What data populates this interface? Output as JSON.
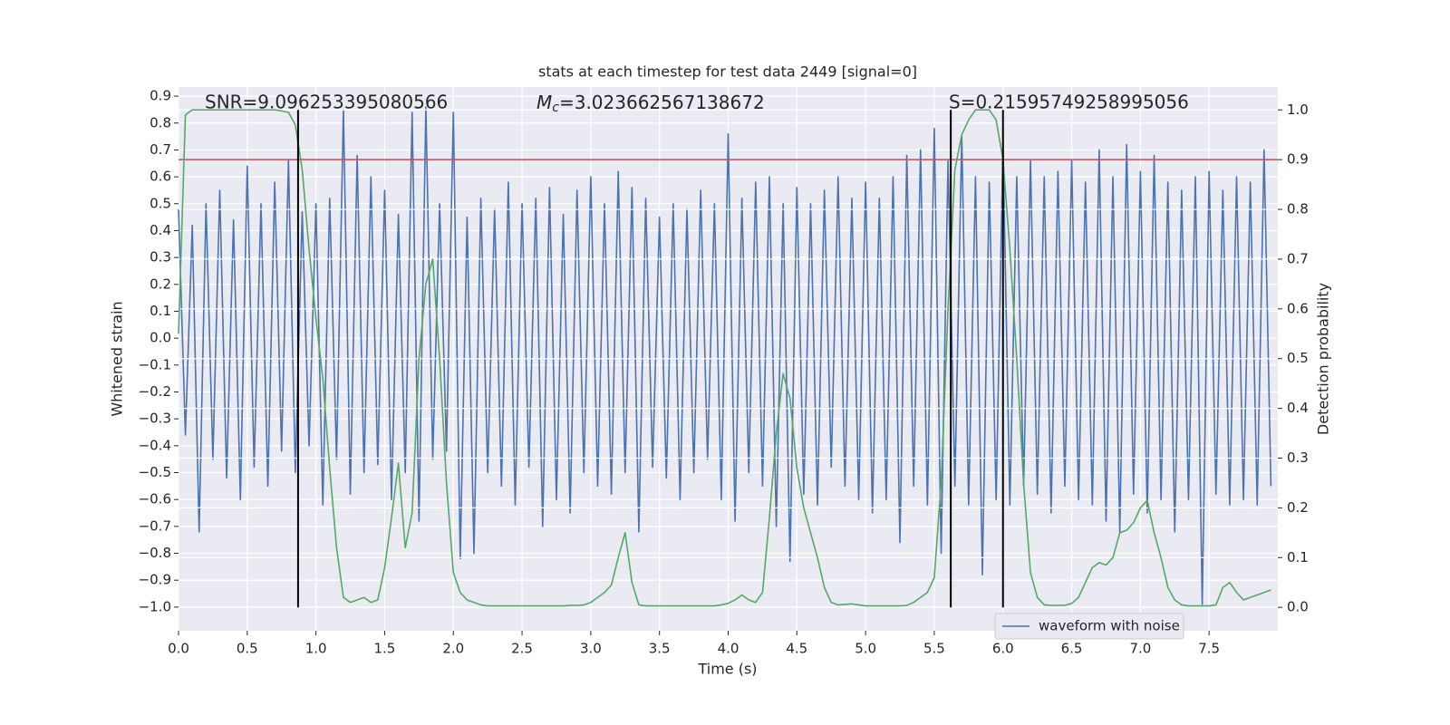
{
  "chart_data": {
    "type": "line",
    "title": "stats at each timestep for test data 2449 [signal=0]",
    "xlabel": "Time (s)",
    "ylabel": "Whitened strain",
    "y2label": "Detection probability",
    "annotations": [
      "SNR=9.096253395080566",
      "S=0.21595749258995056"
    ],
    "mc_label": {
      "symbol": "M",
      "subscript": "c",
      "value": "=3.023662567138672"
    },
    "xlim": [
      0,
      8.0
    ],
    "ylim": [
      -1.088,
      0.934
    ],
    "y2lim": [
      -0.047,
      1.046
    ],
    "xticks": [
      {
        "value": 0,
        "label": "0.0"
      },
      0.5,
      {
        "value": 1,
        "label": "1.0"
      },
      1.5,
      {
        "value": 2,
        "label": "2.0"
      },
      2.5,
      {
        "value": 3,
        "label": "3.0"
      },
      3.5,
      {
        "value": 4,
        "label": "4.0"
      },
      4.5,
      {
        "value": 5,
        "label": "5.0"
      },
      5.5,
      {
        "value": 6,
        "label": "6.0"
      },
      6.5,
      {
        "value": 7,
        "label": "7.0"
      },
      7.5
    ],
    "yticks": [
      {
        "value": -1.0,
        "label": "−1.0"
      },
      {
        "value": -0.9,
        "label": "−0.9"
      },
      {
        "value": -0.8,
        "label": "−0.8"
      },
      {
        "value": -0.7,
        "label": "−0.7"
      },
      {
        "value": -0.6,
        "label": "−0.6"
      },
      {
        "value": -0.5,
        "label": "−0.5"
      },
      {
        "value": -0.4,
        "label": "−0.4"
      },
      {
        "value": -0.3,
        "label": "−0.3"
      },
      {
        "value": -0.2,
        "label": "−0.2"
      },
      {
        "value": -0.1,
        "label": "−0.1"
      },
      {
        "value": 0,
        "label": "0.0"
      },
      0.1,
      0.2,
      0.3,
      0.4,
      0.5,
      0.6,
      0.7,
      0.8,
      0.9
    ],
    "y2ticks": [
      {
        "value": 0,
        "label": "0.0"
      },
      0.1,
      0.2,
      0.3,
      0.4,
      0.5,
      0.6,
      0.7,
      0.8,
      0.9,
      {
        "value": 1,
        "label": "1.0"
      }
    ],
    "grid": true,
    "legend": "lower right",
    "threshold": {
      "value": 0.9,
      "axis": "y2",
      "color": "#c44e52"
    },
    "vlines": {
      "x": [
        0.87,
        5.62,
        6.0
      ],
      "y2_range": [
        0,
        1
      ],
      "color": "#000000"
    },
    "x": [
      0,
      0.05,
      0.1,
      0.15,
      0.2,
      0.25,
      0.3,
      0.35,
      0.4,
      0.45,
      0.5,
      0.55,
      0.6,
      0.65,
      0.7,
      0.75,
      0.8,
      0.85,
      0.9,
      0.95,
      1,
      1.05,
      1.1,
      1.15,
      1.2,
      1.25,
      1.3,
      1.35,
      1.4,
      1.45,
      1.5,
      1.55,
      1.6,
      1.65,
      1.7,
      1.75,
      1.8,
      1.85,
      1.9,
      1.95,
      2,
      2.05,
      2.1,
      2.15,
      2.2,
      2.25,
      2.3,
      2.35,
      2.4,
      2.45,
      2.5,
      2.55,
      2.6,
      2.65,
      2.7,
      2.75,
      2.8,
      2.85,
      2.9,
      2.95,
      3,
      3.05,
      3.1,
      3.15,
      3.2,
      3.25,
      3.3,
      3.35,
      3.4,
      3.45,
      3.5,
      3.55,
      3.6,
      3.65,
      3.7,
      3.75,
      3.8,
      3.85,
      3.9,
      3.95,
      4,
      4.05,
      4.1,
      4.15,
      4.2,
      4.25,
      4.3,
      4.35,
      4.4,
      4.45,
      4.5,
      4.55,
      4.6,
      4.65,
      4.7,
      4.75,
      4.8,
      4.85,
      4.9,
      4.95,
      5,
      5.05,
      5.1,
      5.15,
      5.2,
      5.25,
      5.3,
      5.35,
      5.4,
      5.45,
      5.5,
      5.55,
      5.6,
      5.65,
      5.7,
      5.75,
      5.8,
      5.85,
      5.9,
      5.95,
      6,
      6.05,
      6.1,
      6.15,
      6.2,
      6.25,
      6.3,
      6.35,
      6.4,
      6.45,
      6.5,
      6.55,
      6.6,
      6.65,
      6.7,
      6.75,
      6.8,
      6.85,
      6.9,
      6.95,
      7,
      7.05,
      7.1,
      7.15,
      7.2,
      7.25,
      7.3,
      7.35,
      7.4,
      7.45,
      7.5,
      7.55,
      7.6,
      7.65,
      7.7,
      7.75,
      7.8,
      7.85,
      7.9,
      7.95
    ],
    "series": [
      {
        "name": "waveform with noise",
        "color": "#4c72b0",
        "values": [
          0.48,
          -0.36,
          0.42,
          -0.72,
          0.5,
          -0.45,
          0.55,
          -0.52,
          0.44,
          -0.6,
          0.64,
          -0.48,
          0.5,
          -0.55,
          0.58,
          -0.42,
          0.66,
          -0.5,
          0.47,
          -0.4,
          0.5,
          -0.62,
          0.52,
          -0.45,
          0.85,
          -0.58,
          0.68,
          -0.5,
          0.6,
          -0.47,
          0.55,
          -0.6,
          0.46,
          -0.5,
          0.84,
          -0.68,
          0.86,
          -0.45,
          0.5,
          -0.42,
          0.84,
          -0.82,
          0.45,
          -0.8,
          0.52,
          -0.5,
          0.48,
          -0.55,
          0.58,
          -0.62,
          0.5,
          -0.48,
          0.52,
          -0.7,
          0.56,
          -0.6,
          0.46,
          -0.65,
          0.55,
          -0.5,
          0.6,
          -0.55,
          0.5,
          -0.58,
          0.62,
          -0.5,
          0.56,
          -0.72,
          0.52,
          -0.48,
          0.45,
          -0.52,
          0.5,
          -0.6,
          0.48,
          -0.5,
          0.55,
          -0.45,
          0.5,
          -0.6,
          0.76,
          -0.68,
          0.52,
          -0.5,
          0.58,
          -0.55,
          0.6,
          -0.7,
          0.5,
          -0.83,
          0.56,
          -0.58,
          0.5,
          -0.62,
          0.55,
          -0.48,
          0.6,
          -0.55,
          0.52,
          -0.6,
          0.58,
          -0.65,
          0.52,
          -0.6,
          0.6,
          -0.76,
          0.68,
          -0.55,
          0.7,
          -0.62,
          0.78,
          -0.8,
          0.66,
          -0.55,
          0.75,
          -0.62,
          0.6,
          -0.88,
          0.58,
          -0.6,
          0.72,
          -0.62,
          0.6,
          -0.55,
          0.66,
          -0.58,
          0.6,
          -0.65,
          0.62,
          -0.55,
          0.66,
          -0.6,
          0.58,
          -0.62,
          0.7,
          -0.68,
          0.6,
          -0.72,
          0.72,
          -0.58,
          0.62,
          -0.65,
          0.68,
          -0.6,
          0.58,
          -0.72,
          0.55,
          -0.6,
          0.6,
          -0.99,
          0.62,
          -0.58,
          0.55,
          -0.62,
          0.6,
          -0.6,
          0.58,
          -0.62,
          0.7,
          -0.55
        ]
      },
      {
        "color": "#55a868",
        "axis": "y2",
        "values": [
          0.55,
          0.99,
          1.0,
          1.0,
          1.0,
          1.0,
          1.0,
          1.0,
          1.0,
          1.0,
          1.0,
          1.0,
          1.0,
          1.0,
          1.0,
          0.998,
          0.995,
          0.97,
          0.88,
          0.72,
          0.58,
          0.46,
          0.28,
          0.12,
          0.02,
          0.01,
          0.015,
          0.02,
          0.01,
          0.015,
          0.08,
          0.18,
          0.29,
          0.12,
          0.19,
          0.5,
          0.65,
          0.7,
          0.5,
          0.25,
          0.07,
          0.03,
          0.015,
          0.01,
          0.005,
          0.003,
          0.003,
          0.003,
          0.003,
          0.003,
          0.003,
          0.003,
          0.003,
          0.003,
          0.003,
          0.003,
          0.003,
          0.004,
          0.004,
          0.005,
          0.01,
          0.02,
          0.03,
          0.045,
          0.1,
          0.15,
          0.05,
          0.005,
          0.003,
          0.003,
          0.003,
          0.003,
          0.003,
          0.003,
          0.003,
          0.003,
          0.003,
          0.003,
          0.003,
          0.005,
          0.008,
          0.015,
          0.025,
          0.015,
          0.01,
          0.03,
          0.18,
          0.35,
          0.47,
          0.42,
          0.28,
          0.2,
          0.15,
          0.1,
          0.04,
          0.01,
          0.005,
          0.006,
          0.007,
          0.005,
          0.003,
          0.003,
          0.003,
          0.003,
          0.003,
          0.003,
          0.004,
          0.01,
          0.02,
          0.03,
          0.06,
          0.25,
          0.6,
          0.88,
          0.95,
          0.98,
          1.0,
          1.0,
          1.0,
          0.98,
          0.9,
          0.72,
          0.5,
          0.25,
          0.07,
          0.02,
          0.005,
          0.004,
          0.004,
          0.004,
          0.008,
          0.02,
          0.05,
          0.08,
          0.09,
          0.085,
          0.1,
          0.15,
          0.155,
          0.17,
          0.2,
          0.215,
          0.15,
          0.1,
          0.04,
          0.015,
          0.005,
          0.003,
          0.003,
          0.003,
          0.003,
          0.005,
          0.04,
          0.05,
          0.03,
          0.015,
          0.02,
          0.025,
          0.03,
          0.035
        ]
      }
    ]
  }
}
